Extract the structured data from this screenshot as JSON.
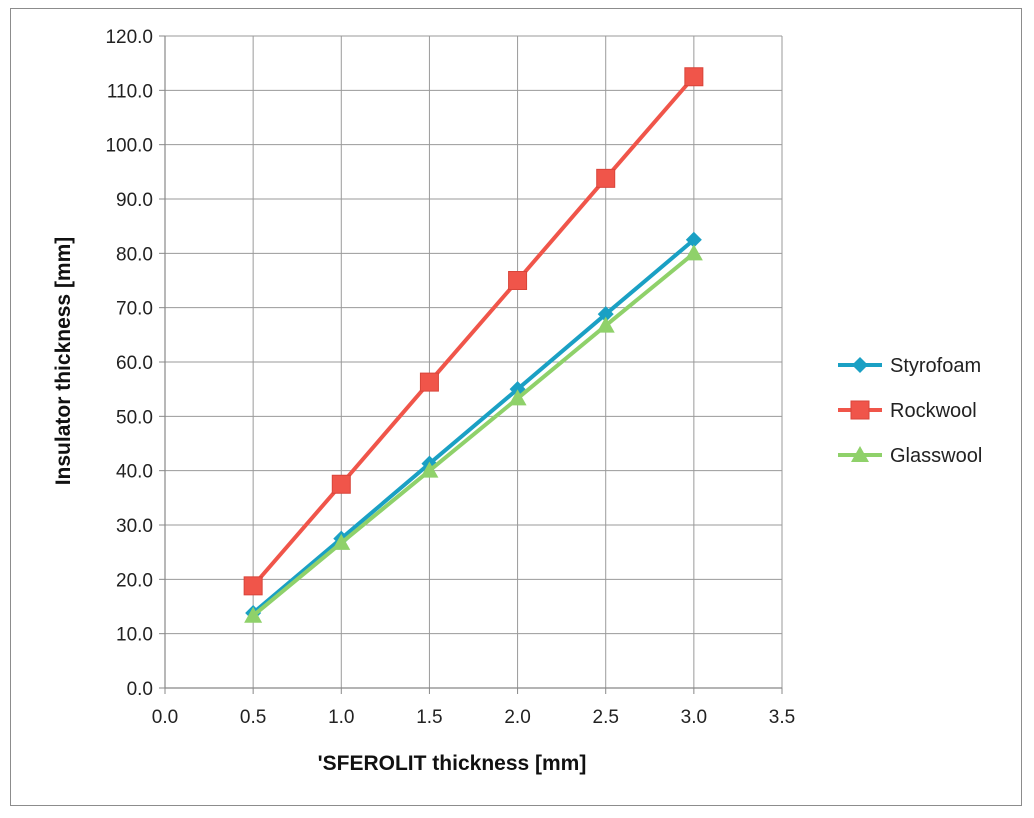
{
  "chart_data": {
    "type": "line",
    "xlabel": "'SFEROLIT  thickness [mm]",
    "ylabel": "Insulator thickness [mm]",
    "xlim": [
      0,
      3.5
    ],
    "ylim": [
      0,
      120
    ],
    "x_ticks": [
      "0.0",
      "0.5",
      "1.0",
      "1.5",
      "2.0",
      "2.5",
      "3.0",
      "3.5"
    ],
    "y_ticks": [
      "0.0",
      "10.0",
      "20.0",
      "30.0",
      "40.0",
      "50.0",
      "60.0",
      "70.0",
      "80.0",
      "90.0",
      "100.0",
      "110.0",
      "120.0"
    ],
    "grid": true,
    "legend_position": "right",
    "x": [
      0.5,
      1.0,
      1.5,
      2.0,
      2.5,
      3.0
    ],
    "series": [
      {
        "name": "Styrofoam",
        "color": "#1aa0c4",
        "marker": "diamond",
        "values": [
          13.8,
          27.5,
          41.3,
          55.0,
          68.8,
          82.5
        ]
      },
      {
        "name": "Rockwool",
        "color": "#f0554a",
        "marker": "square",
        "values": [
          18.8,
          37.5,
          56.3,
          75.0,
          93.8,
          112.5
        ]
      },
      {
        "name": "Glasswool",
        "color": "#8fd16a",
        "marker": "triangle",
        "values": [
          13.3,
          26.7,
          40.0,
          53.3,
          66.7,
          80.0
        ]
      }
    ]
  }
}
